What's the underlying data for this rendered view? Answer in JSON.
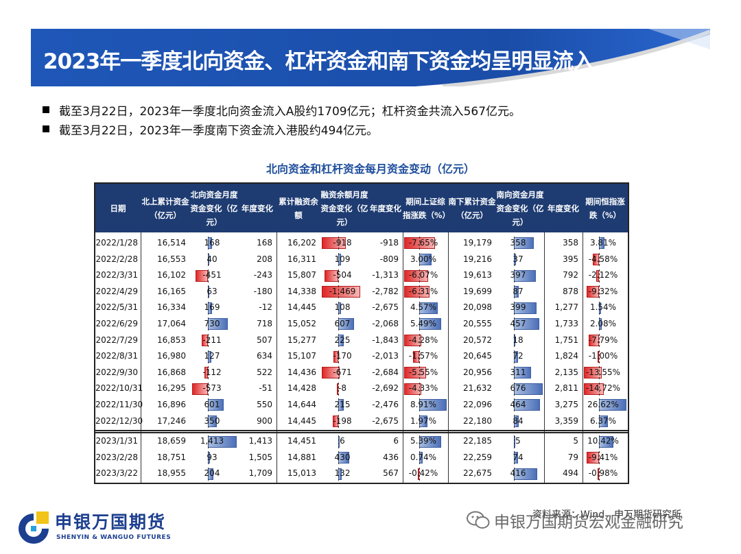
{
  "header": {
    "title": "2023年一季度北向资金、杠杆资金和南下资金均呈明显流入"
  },
  "bullets": [
    "截至3月22日，2023年一季度北向资金流入A股约1709亿元；杠杆资金共流入567亿元。",
    "截至3月22日，2023年一季度南下资金流入港股约494亿元。"
  ],
  "table": {
    "title": "北向资金和杠杆资金每月资金变动（亿元）",
    "headers": [
      "日期",
      "北上累计资金（亿元）",
      "北向资金月度资金变化（亿元）",
      "年度变化",
      "累计融资余额",
      "融资余额月度资金变化（亿元）",
      "年度变化",
      "期间上证综指涨跌（%）",
      "南下累计资金（亿元）",
      "南向资金月度资金变化（亿元）",
      "年度变化",
      "期间恒指涨跌（%）"
    ],
    "rows": [
      [
        "2022/1/28",
        "16,514",
        "168",
        "168",
        "16,202",
        "-918",
        "-918",
        "-7.65%",
        "19,179",
        "358",
        "358",
        "3.81%"
      ],
      [
        "2022/2/28",
        "16,553",
        "40",
        "208",
        "16,311",
        "109",
        "-809",
        "3.00%",
        "19,216",
        "37",
        "395",
        "-4.58%"
      ],
      [
        "2022/3/31",
        "16,102",
        "-451",
        "-243",
        "15,807",
        "-504",
        "-1,313",
        "-6.07%",
        "19,613",
        "397",
        "792",
        "-2.12%"
      ],
      [
        "2022/4/29",
        "16,165",
        "63",
        "-180",
        "14,338",
        "-1,469",
        "-2,782",
        "-6.31%",
        "19,699",
        "87",
        "878",
        "-9.32%"
      ],
      [
        "2022/5/31",
        "16,334",
        "169",
        "-12",
        "14,445",
        "108",
        "-2,675",
        "4.57%",
        "20,098",
        "399",
        "1,277",
        "1.54%"
      ],
      [
        "2022/6/29",
        "17,064",
        "730",
        "718",
        "15,052",
        "607",
        "-2,068",
        "5.49%",
        "20,555",
        "457",
        "1,733",
        "2.08%"
      ],
      [
        "2022/7/29",
        "16,853",
        "-211",
        "507",
        "15,277",
        "225",
        "-1,843",
        "-4.28%",
        "20,572",
        "18",
        "1,751",
        "-7.79%"
      ],
      [
        "2022/8/31",
        "16,980",
        "127",
        "634",
        "15,107",
        "-170",
        "-2,013",
        "-1.57%",
        "20,645",
        "72",
        "1,824",
        "-1.00%"
      ],
      [
        "2022/9/30",
        "16,868",
        "-112",
        "522",
        "14,436",
        "-671",
        "-2,684",
        "-5.55%",
        "20,956",
        "311",
        "2,135",
        "-13.55%"
      ],
      [
        "2022/10/31",
        "16,295",
        "-573",
        "-51",
        "14,428",
        "-8",
        "-2,692",
        "-4.33%",
        "21,632",
        "676",
        "2,811",
        "-14.72%"
      ],
      [
        "2022/11/30",
        "16,896",
        "601",
        "550",
        "14,644",
        "215",
        "-2,476",
        "8.91%",
        "22,096",
        "464",
        "3,275",
        "26.62%"
      ],
      [
        "2022/12/30",
        "17,246",
        "350",
        "900",
        "14,445",
        "-198",
        "-2,675",
        "1.97%",
        "22,180",
        "84",
        "3,359",
        "6.37%"
      ],
      [
        "2023/1/31",
        "18,659",
        "1,413",
        "1,413",
        "14,451",
        "6",
        "6",
        "5.39%",
        "22,185",
        "5",
        "5",
        "10.42%"
      ],
      [
        "2023/2/28",
        "18,751",
        "93",
        "1,505",
        "14,881",
        "430",
        "436",
        "0.74%",
        "22,259",
        "74",
        "79",
        "-9.41%"
      ],
      [
        "2023/3/22",
        "18,955",
        "204",
        "1,709",
        "15,013",
        "132",
        "567",
        "-0.42%",
        "22,675",
        "416",
        "494",
        "-0.98%"
      ]
    ]
  },
  "footer": {
    "logo_cn": "申银万国期货",
    "logo_en": "SHENYIN & WANGUO FUTURES",
    "watermark": "申银万国期货宏观金融研究",
    "source": "资料来源：Wind，申万期货研究所"
  }
}
